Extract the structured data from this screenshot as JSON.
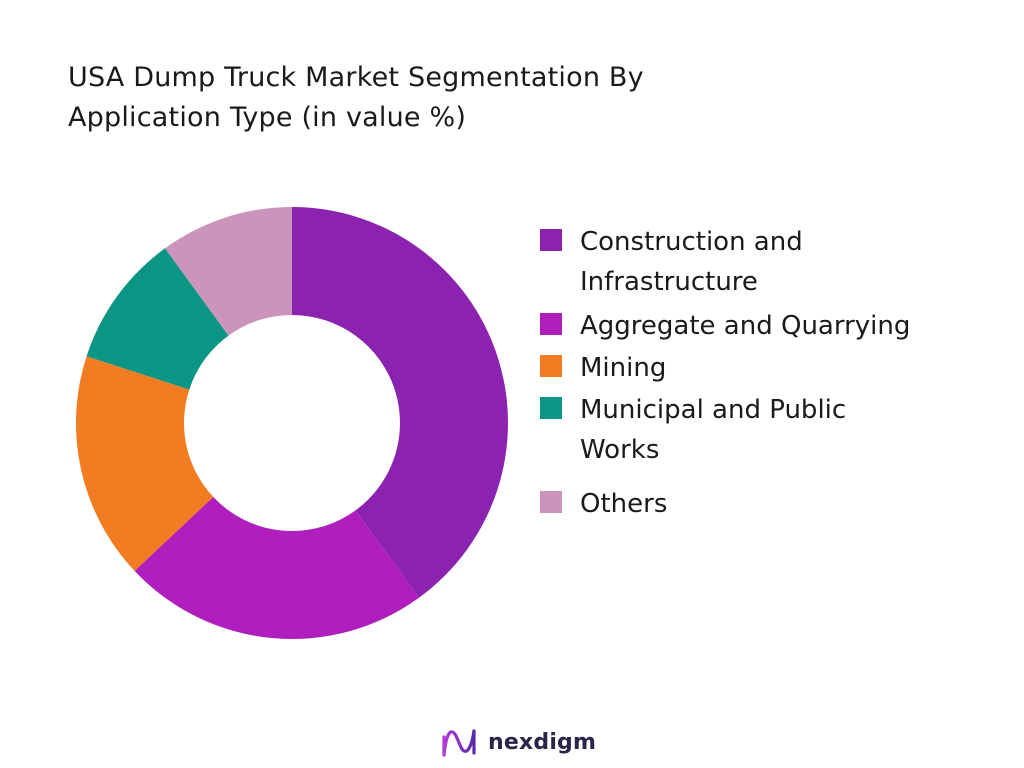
{
  "chart_data": {
    "type": "pie",
    "title_lines": [
      "USA Dump Truck Market Segmentation By",
      "Application Type (in value %)"
    ],
    "categories": [
      "Construction and\nInfrastructure",
      " Aggregate and Quarrying",
      "Mining",
      "Municipal and Public\nWorks",
      "Others"
    ],
    "values": [
      40,
      23,
      17,
      10,
      10
    ],
    "colors": [
      "#8b22b0",
      "#b01fbd",
      "#f27c22",
      "#0b9585",
      "#cb95bb"
    ],
    "donut": true,
    "legend_position": "right"
  },
  "logo": {
    "text": "nexdigm"
  }
}
